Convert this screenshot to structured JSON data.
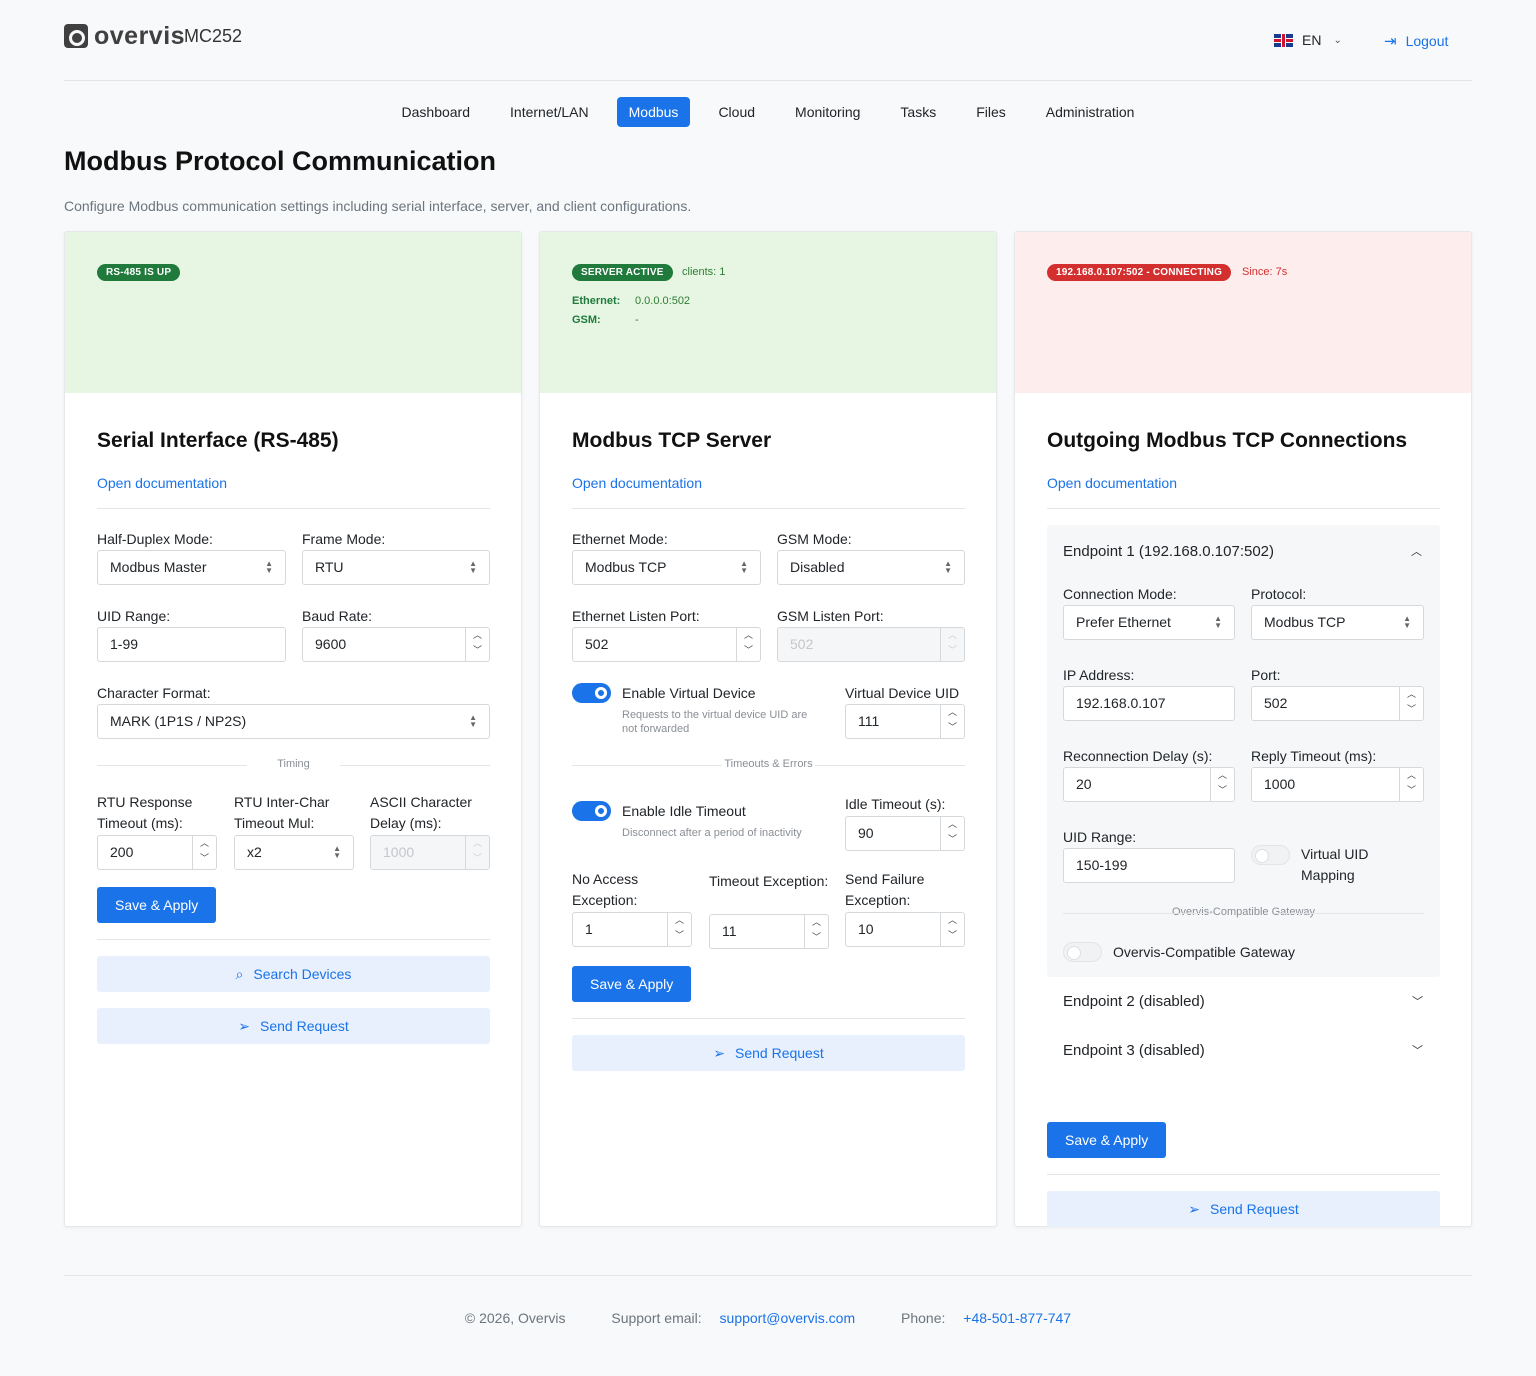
{
  "header": {
    "brand": "overvis",
    "model": "MC252",
    "language": "EN",
    "logout_label": "Logout"
  },
  "nav": [
    "Dashboard",
    "Internet/LAN",
    "Modbus",
    "Cloud",
    "Monitoring",
    "Tasks",
    "Files",
    "Administration"
  ],
  "page": {
    "title": "Modbus Protocol Communication",
    "description": "Configure Modbus communication settings including serial interface, server, and client configurations."
  },
  "serial": {
    "badge": "RS-485 IS UP",
    "title": "Serial Interface (RS-485)",
    "doc_link": "Open documentation",
    "half_duplex_label": "Half-Duplex Mode:",
    "half_duplex_value": "Modbus Master",
    "frame_mode_label": "Frame Mode:",
    "frame_mode_value": "RTU",
    "uid_range_label": "UID Range:",
    "uid_range_value": "1-99",
    "baud_label": "Baud Rate:",
    "baud_value": "9600",
    "char_format_label": "Character Format:",
    "char_format_value": "MARK (1P1S / NP2S)",
    "timing_label": "Timing",
    "rtu_resp_label_1": "RTU Response",
    "rtu_resp_label_2": "Timeout (ms):",
    "rtu_resp_value": "200",
    "rtu_inter_label_1": "RTU Inter-Char",
    "rtu_inter_label_2": "Timeout Mul:",
    "rtu_inter_value": "x2",
    "ascii_label_1": "ASCII Character",
    "ascii_label_2": "Delay (ms):",
    "ascii_value": "1000",
    "save_label": "Save & Apply",
    "search_label": "Search Devices",
    "send_label": "Send Request"
  },
  "server": {
    "badge": "SERVER ACTIVE",
    "clients": "clients: 1",
    "eth_label": "Ethernet:",
    "eth_value": "0.0.0.0:502",
    "gsm_label": "GSM:",
    "gsm_value": "-",
    "title": "Modbus TCP Server",
    "doc_link": "Open documentation",
    "eth_mode_label": "Ethernet Mode:",
    "eth_mode_value": "Modbus TCP",
    "gsm_mode_label": "GSM Mode:",
    "gsm_mode_value": "Disabled",
    "eth_port_label": "Ethernet Listen Port:",
    "eth_port_value": "502",
    "gsm_port_label": "GSM Listen Port:",
    "gsm_port_value": "502",
    "virtual_label": "Enable Virtual Device",
    "virtual_hint_1": "Requests to the virtual device UID are",
    "virtual_hint_2": "not forwarded",
    "virtual_uid_label": "Virtual Device UID",
    "virtual_uid_value": "111",
    "timeouts_label": "Timeouts & Errors",
    "idle_label": "Enable Idle Timeout",
    "idle_hint": "Disconnect after a period of inactivity",
    "idle_timeout_label": "Idle Timeout (s):",
    "idle_timeout_value": "90",
    "no_access_label_1": "No Access",
    "no_access_label_2": "Exception:",
    "no_access_value": "1",
    "timeout_exc_label": "Timeout Exception:",
    "timeout_exc_value": "11",
    "send_fail_label_1": "Send Failure",
    "send_fail_label_2": "Exception:",
    "send_fail_value": "10",
    "save_label": "Save & Apply",
    "send_label": "Send Request"
  },
  "client": {
    "badge": "192.168.0.107:502 - CONNECTING",
    "since": "Since: 7s",
    "title": "Outgoing Modbus TCP Connections",
    "doc_link": "Open documentation",
    "ep1_title": "Endpoint 1 (192.168.0.107:502)",
    "conn_mode_label": "Connection Mode:",
    "conn_mode_value": "Prefer Ethernet",
    "protocol_label": "Protocol:",
    "protocol_value": "Modbus TCP",
    "ip_label": "IP Address:",
    "ip_value": "192.168.0.107",
    "port_label": "Port:",
    "port_value": "502",
    "reconnect_label": "Reconnection Delay (s):",
    "reconnect_value": "20",
    "reply_label": "Reply Timeout (ms):",
    "reply_value": "1000",
    "uid_range_label": "UID Range:",
    "uid_range_value": "150-199",
    "vuid_label_1": "Virtual UID",
    "vuid_label_2": "Mapping",
    "gateway_section": "Overvis-Compatible Gateway",
    "gateway_label": "Overvis-Compatible Gateway",
    "ep2_title": "Endpoint 2 (disabled)",
    "ep3_title": "Endpoint 3 (disabled)",
    "save_label": "Save & Apply",
    "send_label": "Send Request"
  },
  "footer": {
    "copyright": "© 2026, Overvis",
    "support_label": "Support email:",
    "support_email": "support@overvis.com",
    "phone_label": "Phone:",
    "phone": "+48-501-877-747"
  },
  "colors": {
    "accent": "#1a73e8",
    "status_green_bg": "#e6f6e3",
    "status_red_bg": "#fdeeed",
    "badge_green": "#1f7a3b",
    "badge_red": "#d32f2f"
  }
}
